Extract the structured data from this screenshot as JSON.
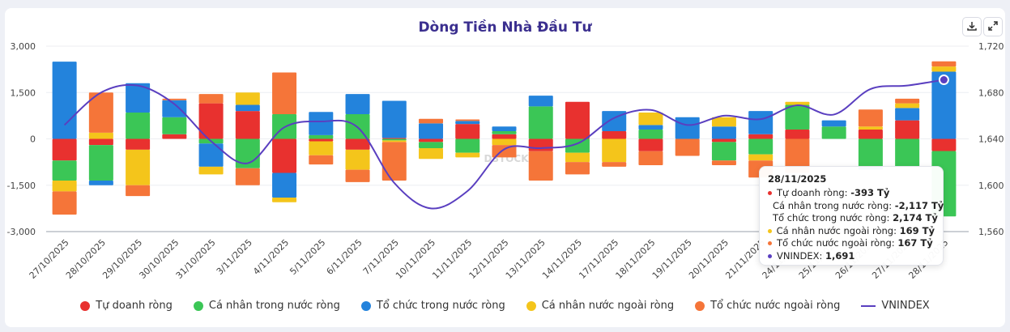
{
  "chart_title": "Dòng Tiền Nhà Đầu Tư",
  "toolbar": {
    "download_icon": "download-icon",
    "expand_icon": "expand-icon"
  },
  "watermark": "DSTOCK",
  "chart_data": {
    "type": "bar",
    "stacked": true,
    "title": "Dòng Tiền Nhà Đầu Tư",
    "categories": [
      "27/10/2025",
      "28/10/2025",
      "29/10/2025",
      "30/10/2025",
      "31/10/2025",
      "3/11/2025",
      "4/11/2025",
      "5/11/2025",
      "6/11/2025",
      "7/11/2025",
      "10/11/2025",
      "11/11/2025",
      "12/11/2025",
      "13/11/2025",
      "14/11/2025",
      "17/11/2025",
      "18/11/2025",
      "19/11/2025",
      "20/11/2025",
      "21/11/2025",
      "24/11/2025",
      "25/11/2025",
      "26/11/2025",
      "27/11/2025",
      "28/11/2025"
    ],
    "ylim": [
      -3000,
      3000
    ],
    "yticks": [
      "3,000",
      "1,500",
      "0",
      "-1,500",
      "-3,000"
    ],
    "y2lim": [
      1560,
      1720
    ],
    "y2ticks": [
      "1,720",
      "1,680",
      "1,640",
      "1,600",
      "1,560"
    ],
    "grid": true,
    "legend_position": "bottom",
    "series": [
      {
        "name": "Tự doanh ròng",
        "color": "#e8312f",
        "values": [
          -700,
          -200,
          -350,
          150,
          1150,
          900,
          -1100,
          -80,
          -350,
          30,
          -100,
          480,
          150,
          -400,
          1200,
          250,
          -400,
          0,
          -100,
          150,
          300,
          0,
          300,
          600,
          -393
        ]
      },
      {
        "name": "Cá nhân trong nước ròng",
        "color": "#3bc656",
        "values": [
          -650,
          -1150,
          850,
          550,
          -150,
          -950,
          800,
          120,
          800,
          -50,
          -200,
          -450,
          100,
          1050,
          -450,
          0,
          300,
          0,
          -600,
          -500,
          800,
          400,
          -900,
          -900,
          -2117
        ]
      },
      {
        "name": "Tổ chức trong nước ròng",
        "color": "#2383dc",
        "values": [
          2500,
          -150,
          950,
          550,
          -750,
          200,
          -800,
          750,
          650,
          1200,
          500,
          100,
          150,
          350,
          0,
          650,
          150,
          700,
          400,
          750,
          0,
          200,
          -100,
          400,
          2174
        ]
      },
      {
        "name": "Cá nhân nước ngoài ròng",
        "color": "#f4c51b",
        "values": [
          -350,
          200,
          -1150,
          0,
          -250,
          400,
          -150,
          -450,
          -650,
          -50,
          -350,
          -150,
          -200,
          0,
          -300,
          -750,
          400,
          0,
          300,
          -200,
          100,
          0,
          100,
          150,
          169
        ]
      },
      {
        "name": "Tổ chức nước ngoài ròng",
        "color": "#f57539",
        "values": [
          -750,
          1300,
          -350,
          50,
          300,
          -550,
          1350,
          -300,
          -400,
          -1250,
          150,
          50,
          -400,
          -950,
          -400,
          -150,
          -450,
          -550,
          -150,
          -550,
          -1100,
          0,
          550,
          150,
          167
        ]
      }
    ],
    "line_series": {
      "name": "VNINDEX",
      "color": "#5a3fc0",
      "axis": "right",
      "values": [
        1652,
        1680,
        1686,
        1670,
        1638,
        1619,
        1650,
        1655,
        1650,
        1602,
        1580,
        1595,
        1631,
        1632,
        1636,
        1658,
        1665,
        1652,
        1660,
        1657,
        1669,
        1661,
        1683,
        1686,
        1691
      ]
    }
  },
  "tooltip": {
    "date": "28/11/2025",
    "rows": [
      {
        "color": "#e8312f",
        "label": "Tự doanh ròng: ",
        "value": "-393 Tỷ"
      },
      {
        "color": "#3bc656",
        "label": "Cá nhân trong nước ròng: ",
        "value": "-2,117 Tỷ"
      },
      {
        "color": "#2383dc",
        "label": "Tổ chức trong nước ròng: ",
        "value": "2,174 Tỷ"
      },
      {
        "color": "#f4c51b",
        "label": "Cá nhân nước ngoài ròng: ",
        "value": "169 Tỷ"
      },
      {
        "color": "#f57539",
        "label": "Tổ chức nước ngoài ròng: ",
        "value": "167 Tỷ"
      },
      {
        "color": "#5a3fc0",
        "label": "VNINDEX: ",
        "value": "1,691"
      }
    ]
  },
  "legend": [
    {
      "label": "Tự doanh ròng",
      "color": "#e8312f",
      "kind": "dot"
    },
    {
      "label": "Cá nhân trong nước ròng",
      "color": "#3bc656",
      "kind": "dot"
    },
    {
      "label": "Tổ chức trong nước ròng",
      "color": "#2383dc",
      "kind": "dot"
    },
    {
      "label": "Cá nhân nước ngoài ròng",
      "color": "#f4c51b",
      "kind": "dot"
    },
    {
      "label": "Tổ chức nước ngoài ròng",
      "color": "#f57539",
      "kind": "dot"
    },
    {
      "label": "VNINDEX",
      "color": "#5a3fc0",
      "kind": "line"
    }
  ]
}
